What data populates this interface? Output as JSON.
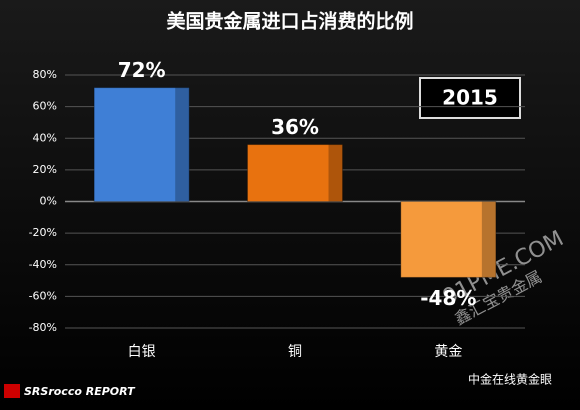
{
  "chart_data": {
    "type": "bar",
    "title": "美国贵金属进口占消费的比例",
    "categories": [
      "白银",
      "铜",
      "黄金"
    ],
    "values": [
      72,
      36,
      -48
    ],
    "value_labels": [
      "72%",
      "36%",
      "-48%"
    ],
    "colors": [
      "#3f7fd6",
      "#e8720f",
      "#f59a3c"
    ],
    "ylim": [
      -80,
      80
    ],
    "yticks": [
      {
        "value": -80,
        "label": "-80%"
      },
      {
        "value": -60,
        "label": "-60%"
      },
      {
        "value": -40,
        "label": "-40%"
      },
      {
        "value": -20,
        "label": "-20%"
      },
      {
        "value": 0,
        "label": "0%"
      },
      {
        "value": 20,
        "label": "20%"
      },
      {
        "value": 40,
        "label": "40%"
      },
      {
        "value": 60,
        "label": "60%"
      },
      {
        "value": 80,
        "label": "80%"
      }
    ],
    "grid": true,
    "annotation": "2015",
    "source": "SRSrocco REPORT",
    "credit": "中金在线黄金眼",
    "watermark": [
      "91PME.COM",
      "鑫汇宝贵金属"
    ]
  }
}
